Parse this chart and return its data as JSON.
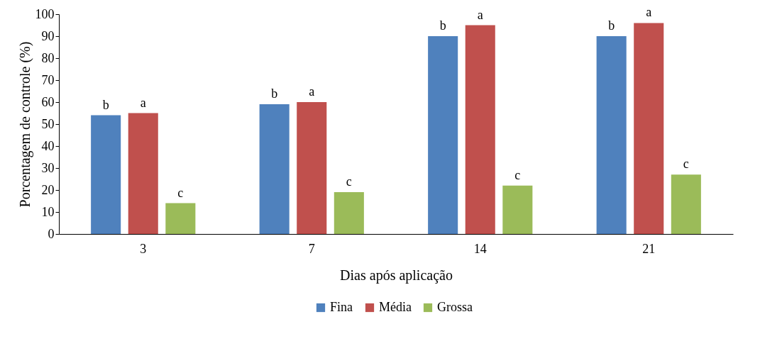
{
  "chart_data": {
    "type": "bar",
    "xlabel": "Dias após aplicação",
    "ylabel": "Porcentagem de controle (%)",
    "categories": [
      "3",
      "7",
      "14",
      "21"
    ],
    "series": [
      {
        "name": "Fina",
        "color": "#4f81bd",
        "values": [
          54,
          59,
          90,
          90
        ],
        "value_labels": [
          "b",
          "b",
          "b",
          "b"
        ]
      },
      {
        "name": "Média",
        "color": "#c0504d",
        "values": [
          55,
          60,
          95,
          96
        ],
        "value_labels": [
          "a",
          "a",
          "a",
          "a"
        ]
      },
      {
        "name": "Grossa",
        "color": "#9bbb59",
        "values": [
          14,
          19,
          22,
          27
        ],
        "value_labels": [
          "c",
          "c",
          "c",
          "c"
        ]
      }
    ],
    "ylim": [
      0,
      100
    ],
    "yticks": [
      0,
      10,
      20,
      30,
      40,
      50,
      60,
      70,
      80,
      90,
      100
    ],
    "grid": false,
    "legend": "bottom"
  }
}
